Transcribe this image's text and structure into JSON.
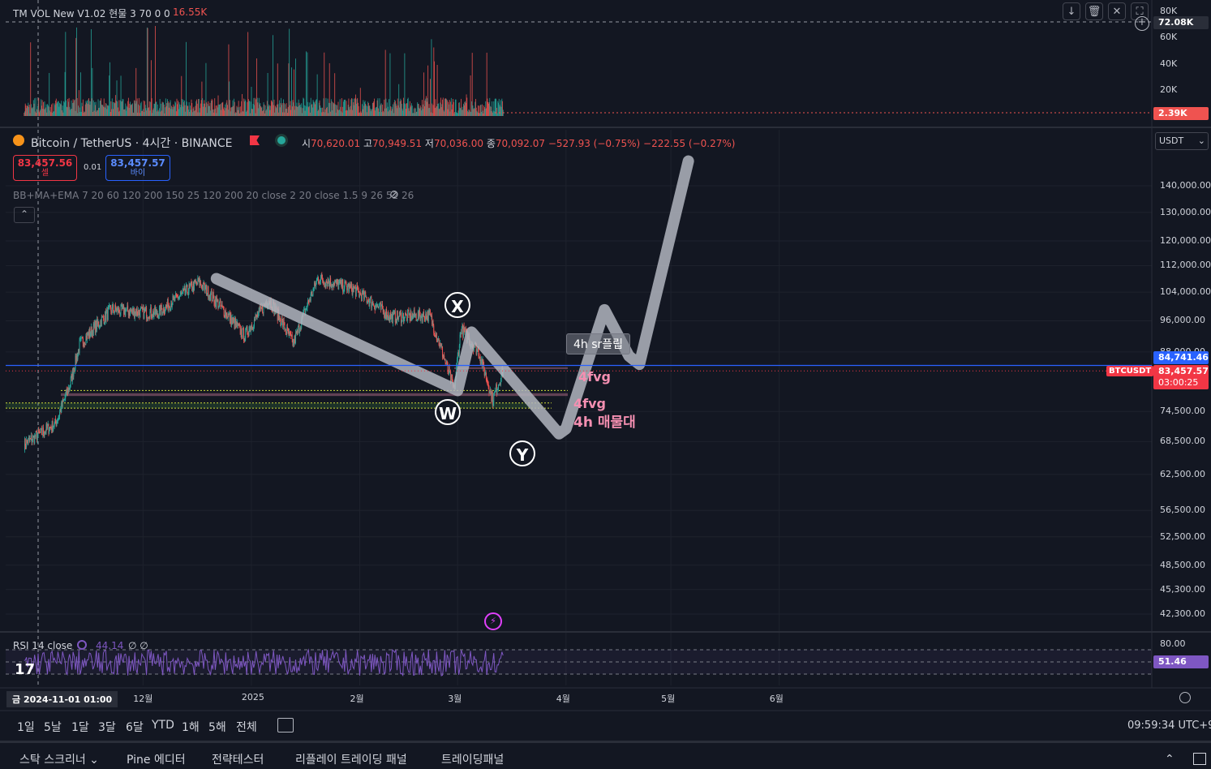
{
  "volume_pane": {
    "indicator_title": "TM VOL New V1.02 현물 3 70 0 0",
    "indicator_value": "16.55K",
    "axis_ticks": [
      {
        "label": "80K",
        "value": 80000
      },
      {
        "label": "60K",
        "value": 60000
      },
      {
        "label": "40K",
        "value": 40000
      },
      {
        "label": "20K",
        "value": 20000
      }
    ],
    "crosshair_value_label": "72.08K",
    "last_value_label": "2.39K"
  },
  "symbol_header": {
    "symbol": "Bitcoin / TetherUS · 4시간 · BINANCE",
    "open_label": "시",
    "open_value": "70,620.01",
    "high_label": "고",
    "high_value": "70,949.51",
    "low_label": "저",
    "low_value": "70,036.00",
    "close_label": "종",
    "close_value": "70,092.07",
    "change": "−527.93 (−0.75%)",
    "change2": "−222.55 (−0.27%)",
    "currency": "USDT"
  },
  "order_buttons": {
    "sell_price": "83,457.56",
    "sell_label": "셀",
    "spread": "0.01",
    "buy_price": "83,457.57",
    "buy_label": "바이"
  },
  "overlay_indicator": "BB+MA+EMA 7 20 60 120 200 150 25 120 200 20 close 2 20 close 1.5 9 26 52 26",
  "price_axis": {
    "ticks": [
      {
        "label": "140,000.00",
        "value": 140000
      },
      {
        "label": "130,000.00",
        "value": 130000
      },
      {
        "label": "120,000.00",
        "value": 120000
      },
      {
        "label": "112,000.00",
        "value": 112000
      },
      {
        "label": "104,000.00",
        "value": 104000
      },
      {
        "label": "96,000.00",
        "value": 96000
      },
      {
        "label": "88,000.00",
        "value": 88000
      },
      {
        "label": "74,500.00",
        "value": 74500
      },
      {
        "label": "68,500.00",
        "value": 68500
      },
      {
        "label": "62,500.00",
        "value": 62500
      },
      {
        "label": "56,500.00",
        "value": 56500
      },
      {
        "label": "52,500.00",
        "value": 52500
      },
      {
        "label": "48,500.00",
        "value": 48500
      },
      {
        "label": "45,300.00",
        "value": 45300
      },
      {
        "label": "42,300.00",
        "value": 42300
      }
    ],
    "blue_line_label": "84,741.46",
    "last_price_label": "83,457.57",
    "countdown": "03:00:25",
    "symbol_tag": "BTCUSDT"
  },
  "annotations": {
    "wave_labels": [
      "X",
      "W",
      "Y"
    ],
    "sr_flip": "4h sr플립",
    "fvg_1": "4fvg",
    "fvg_2": "4fvg",
    "supply_zone": "4h 매물대"
  },
  "rsi_pane": {
    "title": "RSI 14 close",
    "value_text": "44.14",
    "extra": "∅ ∅",
    "axis_tick": {
      "label": "80.00",
      "value": 80
    },
    "current_label": "51.46"
  },
  "time_axis": {
    "crosshair_date": "금 2024-11-01   01:00",
    "labels": [
      "12월",
      "2025",
      "2월",
      "3월",
      "4월",
      "5월",
      "6월"
    ]
  },
  "timeframes": [
    "1일",
    "5날",
    "1달",
    "3달",
    "6달",
    "YTD",
    "1해",
    "5해",
    "전체"
  ],
  "clock": "09:59:34 UTC+9",
  "bottom_tabs": [
    "스탁 스크리너",
    "Pine 에디터",
    "전략테스터",
    "리플레이 트레이딩 패널",
    "트레이딩패널"
  ],
  "colors": {
    "background": "#131722",
    "up": "#26a69a",
    "down": "#ef5350",
    "blue_line": "#2962ff",
    "last_price": "#f23645",
    "rsi": "#7e57c2",
    "annotation_pink": "#f48fb1",
    "drawing_gray": "#b2b5be"
  },
  "chart_data": {
    "type": "candlestick",
    "series_name": "BTCUSDT 4h",
    "timeframe": "4h",
    "y_scale": "log",
    "grid": true,
    "legend": "none",
    "x_labels": [
      "12월",
      "2025",
      "2월",
      "3월",
      "4월",
      "5월",
      "6월"
    ],
    "price_path_keypoints": [
      {
        "date": "2024-10-28",
        "price": 68000
      },
      {
        "date": "2024-11-06",
        "price": 72000
      },
      {
        "date": "2024-11-10",
        "price": 80000
      },
      {
        "date": "2024-11-13",
        "price": 90000
      },
      {
        "date": "2024-11-22",
        "price": 99000
      },
      {
        "date": "2024-12-05",
        "price": 98000
      },
      {
        "date": "2024-12-17",
        "price": 107000
      },
      {
        "date": "2024-12-30",
        "price": 92000
      },
      {
        "date": "2025-01-06",
        "price": 102000
      },
      {
        "date": "2025-01-13",
        "price": 90000
      },
      {
        "date": "2025-01-20",
        "price": 108000
      },
      {
        "date": "2025-01-30",
        "price": 105000
      },
      {
        "date": "2025-02-10",
        "price": 97000
      },
      {
        "date": "2025-02-21",
        "price": 97500
      },
      {
        "date": "2025-02-28",
        "price": 79000
      },
      {
        "date": "2025-03-02",
        "price": 94000
      },
      {
        "date": "2025-03-07",
        "price": 88000
      },
      {
        "date": "2025-03-11",
        "price": 77000
      },
      {
        "date": "2025-03-14",
        "price": 83457
      }
    ],
    "levels": [
      {
        "name": "blue line",
        "price": 84741.46
      },
      {
        "name": "last price",
        "price": 83457.57
      }
    ],
    "projection": [
      {
        "date": "2025-03-01",
        "price": 79000
      },
      {
        "date": "2025-03-05",
        "price": 92000
      },
      {
        "date": "2025-04-01",
        "price": 69000
      },
      {
        "date": "2025-04-13",
        "price": 100000
      },
      {
        "date": "2025-04-20",
        "price": 86000
      },
      {
        "date": "2025-05-05",
        "price": 150000
      }
    ],
    "rsi": {
      "period": 14,
      "value": 44.14,
      "current": 51.46
    }
  }
}
